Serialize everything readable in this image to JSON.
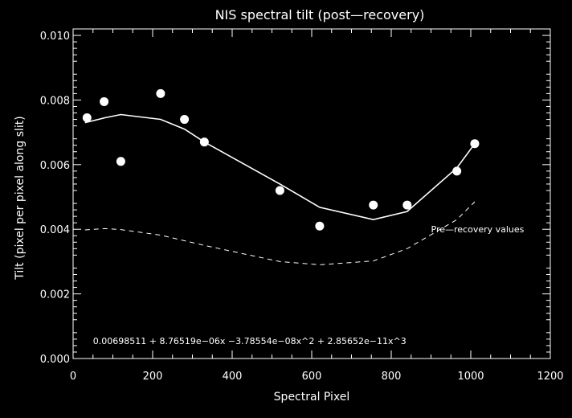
{
  "chart_data": {
    "type": "scatter",
    "title": "NIS spectral tilt (post—recovery)",
    "xlabel": "Spectral Pixel",
    "ylabel": "Tilt (pixel per pixel along slit)",
    "xlim": [
      0,
      1200
    ],
    "ylim": [
      0.0,
      0.0102
    ],
    "xticks": [
      0,
      200,
      400,
      600,
      800,
      1000,
      1200
    ],
    "xtick_labels": [
      "0",
      "200",
      "400",
      "600",
      "800",
      "1000",
      "1200"
    ],
    "yticks": [
      0.0,
      0.002,
      0.004,
      0.006,
      0.008,
      0.01
    ],
    "ytick_labels": [
      "0.000",
      "0.002",
      "0.004",
      "0.006",
      "0.008",
      "0.010"
    ],
    "grid": false,
    "series": [
      {
        "style": "points",
        "color": "#ffffff",
        "x": [
          35,
          78,
          120,
          220,
          280,
          330,
          520,
          620,
          755,
          840,
          965,
          1010
        ],
        "y": [
          0.00745,
          0.00795,
          0.0061,
          0.0082,
          0.0074,
          0.0067,
          0.0052,
          0.0041,
          0.00475,
          0.00475,
          0.0058,
          0.00665
        ]
      },
      {
        "style": "solid-line",
        "color": "#ffffff",
        "x": [
          30,
          80,
          120,
          220,
          280,
          330,
          520,
          620,
          755,
          840,
          965,
          1010
        ],
        "y": [
          0.0073,
          0.00745,
          0.00755,
          0.0074,
          0.0071,
          0.0067,
          0.0054,
          0.00468,
          0.0043,
          0.00455,
          0.0059,
          0.00665
        ]
      },
      {
        "style": "dashed-line",
        "color": "#ffffff",
        "x": [
          30,
          80,
          120,
          220,
          330,
          520,
          620,
          755,
          840,
          965,
          1010
        ],
        "y": [
          0.00398,
          0.00402,
          0.00399,
          0.00382,
          0.0035,
          0.003,
          0.0029,
          0.00302,
          0.0034,
          0.0043,
          0.00485
        ]
      }
    ],
    "annotations": [
      {
        "text": "Pre—recovery values",
        "x": 900,
        "y": 0.0039
      },
      {
        "text": "0.00698511 + 8.76519e−06x −3.78554e−08x^2 + 2.85652e−11x^3",
        "x": 50,
        "y": 0.00045
      }
    ]
  }
}
